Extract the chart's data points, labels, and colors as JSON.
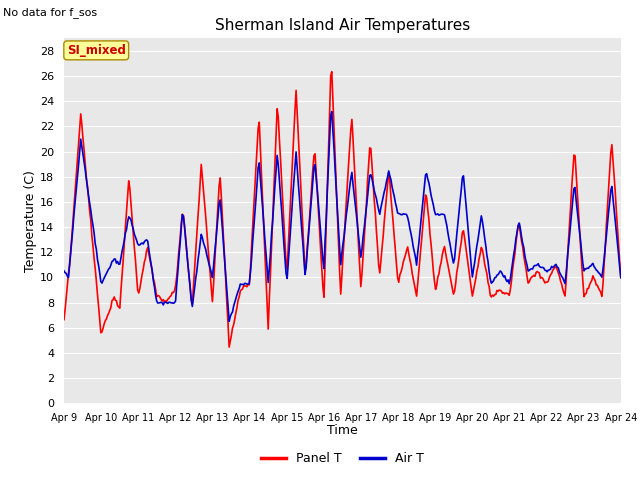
{
  "title": "Sherman Island Air Temperatures",
  "subtitle": "No data for f_sos",
  "xlabel": "Time",
  "ylabel": "Temperature (C)",
  "ylim": [
    0,
    29
  ],
  "yticks": [
    0,
    2,
    4,
    6,
    8,
    10,
    12,
    14,
    16,
    18,
    20,
    22,
    24,
    26,
    28
  ],
  "xtick_labels": [
    "Apr 9",
    "Apr 10",
    "Apr 11",
    "Apr 12",
    "Apr 13",
    "Apr 14",
    "Apr 15",
    "Apr 16",
    "Apr 17",
    "Apr 18",
    "Apr 19",
    "Apr 20",
    "Apr 21",
    "Apr 22",
    "Apr 23",
    "Apr 24"
  ],
  "panel_color": "#ff0000",
  "air_color": "#0000cc",
  "plot_bg": "#e8e8e8",
  "legend_label_panel": "Panel T",
  "legend_label_air": "Air T",
  "si_mixed_label": "SI_mixed",
  "si_mixed_bg": "#ffff99",
  "si_mixed_fg": "#cc0000",
  "line_width": 1.2,
  "panel_keypoints_x": [
    0,
    0.18,
    0.45,
    1.0,
    1.35,
    1.5,
    1.75,
    2.0,
    2.25,
    2.5,
    2.75,
    3.0,
    3.2,
    3.45,
    3.7,
    4.0,
    4.2,
    4.45,
    4.75,
    5.0,
    5.25,
    5.5,
    5.75,
    6.0,
    6.25,
    6.5,
    6.75,
    7.0,
    7.2,
    7.45,
    7.75,
    8.0,
    8.25,
    8.5,
    8.75,
    9.0,
    9.25,
    9.5,
    9.75,
    10.0,
    10.25,
    10.5,
    10.75,
    11.0,
    11.25,
    11.5,
    11.75,
    12.0,
    12.25,
    12.5,
    12.75,
    13.0,
    13.25,
    13.5,
    13.75,
    14.0,
    14.25,
    14.5,
    14.75,
    15.0
  ],
  "panel_keypoints_y": [
    6.5,
    12,
    23,
    5.5,
    8.5,
    7.5,
    18,
    8.5,
    12.5,
    8.5,
    8.0,
    9.0,
    15.5,
    7.5,
    19,
    8,
    18.5,
    4.5,
    9.0,
    9.5,
    23,
    6.0,
    24,
    10,
    25,
    10,
    20.5,
    8,
    27.5,
    8.5,
    23,
    9,
    21,
    10,
    18.5,
    9.5,
    12.5,
    8.5,
    17,
    9,
    12.5,
    8.5,
    14,
    8.5,
    12.5,
    8.5,
    9,
    8.5,
    14.5,
    9.5,
    10.5,
    9.5,
    11,
    8.5,
    20.5,
    8.5,
    10,
    8.5,
    21,
    10
  ],
  "air_keypoints_x": [
    0,
    0.12,
    0.45,
    1.0,
    1.35,
    1.5,
    1.75,
    2.0,
    2.25,
    2.5,
    2.75,
    3.0,
    3.2,
    3.45,
    3.7,
    4.0,
    4.2,
    4.45,
    4.75,
    5.0,
    5.25,
    5.5,
    5.75,
    6.0,
    6.25,
    6.5,
    6.75,
    7.0,
    7.2,
    7.45,
    7.75,
    8.0,
    8.25,
    8.5,
    8.75,
    9.0,
    9.25,
    9.5,
    9.75,
    10.0,
    10.25,
    10.5,
    10.75,
    11.0,
    11.25,
    11.5,
    11.75,
    12.0,
    12.25,
    12.5,
    12.75,
    13.0,
    13.25,
    13.5,
    13.75,
    14.0,
    14.25,
    14.5,
    14.75,
    15.0
  ],
  "air_keypoints_y": [
    10.5,
    10,
    21,
    9.5,
    11.5,
    11,
    15,
    12.5,
    13,
    8,
    8,
    8,
    15.5,
    7.5,
    13.5,
    10,
    16.5,
    6.5,
    9.5,
    9.5,
    19.5,
    9.5,
    20,
    9.5,
    20,
    10,
    19.5,
    10.5,
    24,
    11,
    18.5,
    11.5,
    18.5,
    15,
    18.5,
    15,
    15,
    11,
    18.5,
    15,
    15,
    11,
    18.5,
    10,
    15,
    9.5,
    10.5,
    9.5,
    14.5,
    10.5,
    11,
    10.5,
    11,
    9.5,
    17.5,
    10.5,
    11,
    10,
    17.5,
    10
  ]
}
